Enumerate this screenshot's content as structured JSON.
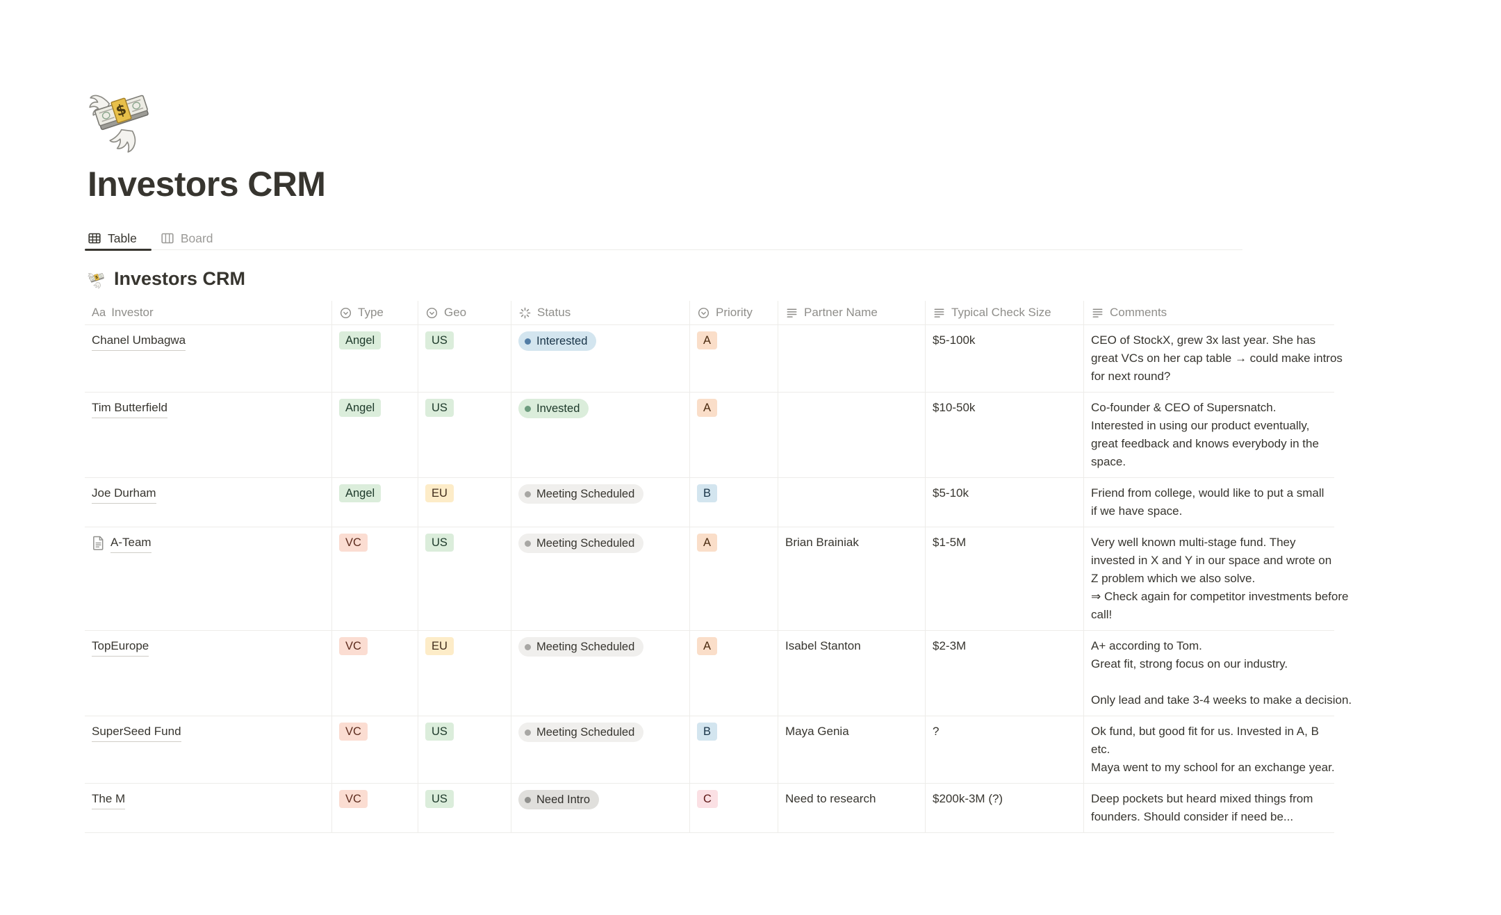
{
  "page": {
    "emoji_name": "money-with-wings-emoji",
    "title": "Investors CRM",
    "tabs": [
      {
        "label": "Table",
        "icon": "table-icon",
        "active": true
      },
      {
        "label": "Board",
        "icon": "board-icon",
        "active": false
      }
    ],
    "view_emoji_name": "money-with-wings-emoji",
    "view_title": "Investors CRM"
  },
  "table": {
    "columns": [
      {
        "label": "Investor",
        "icon": "text-style-icon"
      },
      {
        "label": "Type",
        "icon": "select-icon"
      },
      {
        "label": "Geo",
        "icon": "select-icon"
      },
      {
        "label": "Status",
        "icon": "status-icon"
      },
      {
        "label": "Priority",
        "icon": "select-icon"
      },
      {
        "label": "Partner Name",
        "icon": "text-icon"
      },
      {
        "label": "Typical Check Size",
        "icon": "text-icon"
      },
      {
        "label": "Comments",
        "icon": "text-icon"
      }
    ],
    "rows": [
      {
        "investor": "Chanel Umbagwa",
        "has_page_icon": false,
        "type": {
          "label": "Angel",
          "color": "green"
        },
        "geo": {
          "label": "US",
          "color": "green"
        },
        "status": {
          "label": "Interested",
          "color": "blue"
        },
        "priority": {
          "label": "A",
          "color": "orange"
        },
        "partner": "",
        "check_size": "$5-100k",
        "comments": "CEO of StockX, grew 3x last year. She has\ngreat VCs on her cap table → could make intros\nfor next round?"
      },
      {
        "investor": "Tim Butterfield",
        "has_page_icon": false,
        "type": {
          "label": "Angel",
          "color": "green"
        },
        "geo": {
          "label": "US",
          "color": "green"
        },
        "status": {
          "label": "Invested",
          "color": "green"
        },
        "priority": {
          "label": "A",
          "color": "orange"
        },
        "partner": "",
        "check_size": "$10-50k",
        "comments": "Co-founder & CEO of Supersnatch.\nInterested in using our product eventually,\ngreat feedback and knows everybody in the\nspace."
      },
      {
        "investor": "Joe Durham",
        "has_page_icon": false,
        "type": {
          "label": "Angel",
          "color": "green"
        },
        "geo": {
          "label": "EU",
          "color": "yellow"
        },
        "status": {
          "label": "Meeting Scheduled",
          "color": "lightgray"
        },
        "priority": {
          "label": "B",
          "color": "blue"
        },
        "partner": "",
        "check_size": "$5-10k",
        "comments": "Friend from college, would like to put a small\nif we have space."
      },
      {
        "investor": "A-Team",
        "has_page_icon": true,
        "type": {
          "label": "VC",
          "color": "salmon"
        },
        "geo": {
          "label": "US",
          "color": "green"
        },
        "status": {
          "label": "Meeting Scheduled",
          "color": "lightgray"
        },
        "priority": {
          "label": "A",
          "color": "orange"
        },
        "partner": "Brian Brainiak",
        "check_size": "$1-5M",
        "comments": "Very well known multi-stage fund. They\ninvested in X and Y in our space and wrote on\nZ problem which we also solve.\n⇒ Check again for competitor investments before\ncall!"
      },
      {
        "investor": "TopEurope",
        "has_page_icon": false,
        "type": {
          "label": "VC",
          "color": "salmon"
        },
        "geo": {
          "label": "EU",
          "color": "yellow"
        },
        "status": {
          "label": "Meeting Scheduled",
          "color": "lightgray"
        },
        "priority": {
          "label": "A",
          "color": "orange"
        },
        "partner": "Isabel Stanton",
        "check_size": "$2-3M",
        "comments": "A+ according to Tom.\nGreat fit, strong focus on our industry.\n\nOnly lead and take 3-4 weeks to make a decision."
      },
      {
        "investor": "SuperSeed Fund",
        "has_page_icon": false,
        "type": {
          "label": "VC",
          "color": "salmon"
        },
        "geo": {
          "label": "US",
          "color": "green"
        },
        "status": {
          "label": "Meeting Scheduled",
          "color": "lightgray"
        },
        "priority": {
          "label": "B",
          "color": "blue"
        },
        "partner": "Maya Genia",
        "check_size": "?",
        "comments": "Ok fund, but good fit for us. Invested in A, B\netc.\nMaya went to my school for an exchange year."
      },
      {
        "investor": "The M",
        "has_page_icon": false,
        "type": {
          "label": "VC",
          "color": "salmon"
        },
        "geo": {
          "label": "US",
          "color": "green"
        },
        "status": {
          "label": "Need Intro",
          "color": "gray"
        },
        "priority": {
          "label": "C",
          "color": "pink"
        },
        "partner": "Need to research",
        "check_size": "$200k-3M (?)",
        "comments": "Deep pockets but heard mixed things from\nfounders. Should consider if need be..."
      }
    ]
  },
  "colors": {
    "text": "#37352F",
    "secondary_text": "#8F8E8A",
    "border": "#EDECE9",
    "tag_green_bg": "#DBEDDB",
    "tag_orange_bg": "#FADEC9",
    "tag_salmon_bg": "#FBDDD2",
    "tag_yellow_bg": "#FDECC8",
    "tag_blue_bg": "#D3E5EF",
    "tag_pink_bg": "#FBE0E4",
    "status_blue_dot": "#527DA5",
    "status_green_dot": "#6C9B7D",
    "status_gray_dot": "#90908D",
    "active_tab_underline": "#37352F"
  }
}
